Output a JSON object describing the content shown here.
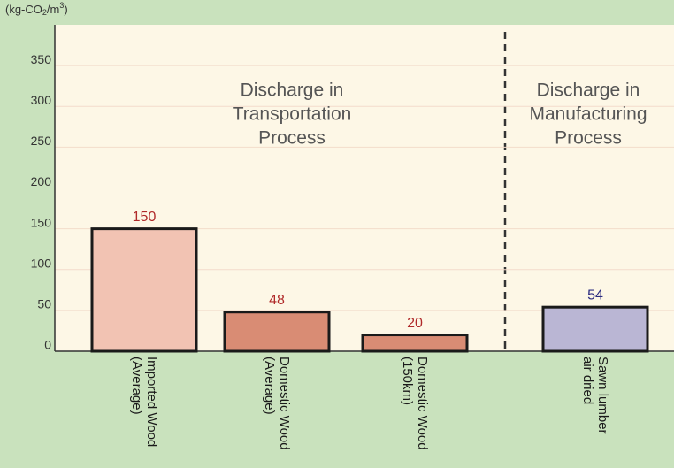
{
  "chart_data": {
    "type": "bar",
    "ylabel": [
      "(kg-CO",
      "2",
      "/m",
      "3",
      ")"
    ],
    "categories": [
      [
        "Imported Wood",
        "(Average)"
      ],
      [
        "Domestic Wood",
        "(Average)"
      ],
      [
        "Domestic Wood",
        "(150km)"
      ],
      [
        "Sawn lumber",
        "air dried"
      ]
    ],
    "values": [
      150,
      48,
      20,
      54
    ],
    "colors": [
      "#f2c3b3",
      "#d98c74",
      "#d98c74",
      "#bab6d4"
    ],
    "value_label_colors": [
      "#b02a2a",
      "#b02a2a",
      "#b02a2a",
      "#2c2c80"
    ],
    "ylim": [
      0,
      400
    ],
    "yticks": [
      0,
      50,
      100,
      150,
      200,
      250,
      300,
      350
    ],
    "grid": true,
    "annotations": [
      [
        "Discharge in",
        "Transportation",
        "Process"
      ],
      [
        "Discharge in",
        "Manufacturing",
        "Process"
      ]
    ]
  }
}
